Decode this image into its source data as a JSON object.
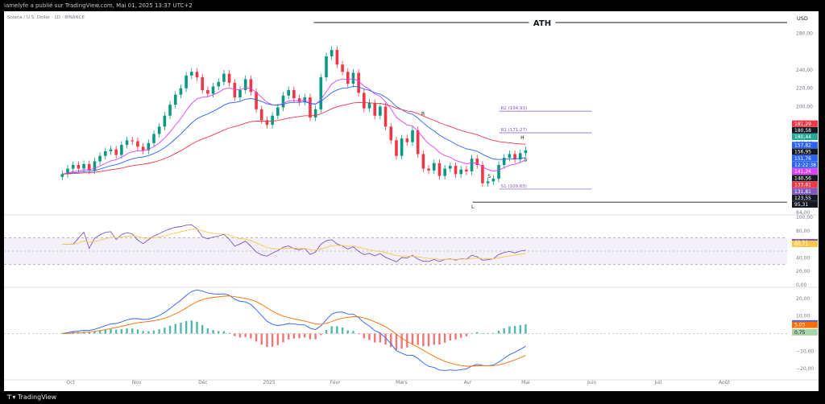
{
  "topbar": {
    "text": "iamelyfe a publié sur TradingView.com, Mai 01, 2025 13:37 UTC+2"
  },
  "brand": {
    "text": "TradingView"
  },
  "chart_data": {
    "type": "candlestick",
    "symbol": "Solana / U.S. Dollar · 1D · BINANCE",
    "currency": "USD",
    "price_axis": {
      "min": 84,
      "max": 292,
      "ticks": [
        "280,00",
        "240,00",
        "220,00",
        "200,00",
        "160,00",
        "120,00",
        "102,00",
        "84,00"
      ],
      "tick_values": [
        280,
        240,
        220,
        200,
        160,
        120,
        102,
        84
      ]
    },
    "x_labels": [
      "Oct",
      "Nov",
      "Déc",
      "2025",
      "Févr",
      "Mars",
      "Avr",
      "Mai",
      "Juin",
      "Juil",
      "Août"
    ],
    "x_positions": [
      0.125,
      1.125,
      2.125,
      3.125,
      4.125,
      5.125,
      6.125,
      7.0,
      8.0,
      9.0,
      10.0
    ],
    "time_range": [
      -0.88,
      10.95
    ],
    "current_index": 7.0,
    "closes": [
      126,
      132,
      136,
      132,
      137,
      130,
      140,
      146,
      151,
      153,
      147,
      158,
      163,
      162,
      156,
      152,
      160,
      170,
      178,
      190,
      202,
      213,
      220,
      234,
      238,
      232,
      218,
      214,
      222,
      227,
      236,
      226,
      210,
      218,
      230,
      216,
      197,
      185,
      180,
      190,
      199,
      212,
      218,
      209,
      205,
      210,
      188,
      197,
      232,
      255,
      262,
      246,
      238,
      225,
      237,
      215,
      198,
      204,
      190,
      200,
      178,
      163,
      146,
      165,
      161,
      174,
      148,
      132,
      130,
      138,
      124,
      132,
      135,
      126,
      131,
      129,
      143,
      136,
      116,
      118,
      121,
      136,
      144,
      148,
      142,
      149,
      152
    ],
    "levels": [
      {
        "label": "R2 (194,93)",
        "value": 194.93
      },
      {
        "label": "R1 (171,27)",
        "value": 171.27
      },
      {
        "label": "S1 (109,63)",
        "value": 109.63
      }
    ],
    "annotations": {
      "ath": "ATH",
      "ath_value": 292,
      "low_label": "L",
      "low_value": 95.31,
      "h_label": "H",
      "s_label": "S",
      "r_label": "R"
    },
    "price_tags": [
      {
        "text": "181,29",
        "value": 181.29,
        "color": "#f23645"
      },
      {
        "text": "180,58",
        "value": 180.58,
        "color": "#131722"
      },
      {
        "text": "180,44",
        "value": 180.44,
        "color": "#22ab94"
      },
      {
        "text": "157,82",
        "value": 157.82,
        "color": "#2962ff"
      },
      {
        "text": "156,95",
        "value": 156.95,
        "color": "#131722"
      },
      {
        "text": "151,76",
        "value": 151.76,
        "color": "#2962ff"
      },
      {
        "text": "12:22:38",
        "value": 148.3,
        "color": "#2962ff"
      },
      {
        "text": "141,24",
        "value": 141.24,
        "color": "#e040fb"
      },
      {
        "text": "140,56",
        "value": 140.56,
        "color": "#131722"
      },
      {
        "text": "133,81",
        "value": 133.81,
        "color": "#f23645"
      },
      {
        "text": "131,81",
        "value": 131.81,
        "color": "#7e57c2"
      },
      {
        "text": "123,55",
        "value": 123.55,
        "color": "#131722"
      },
      {
        "text": "95,31",
        "value": 95.31,
        "color": "#131722"
      }
    ],
    "rsi": {
      "ticks": [
        "100,00",
        "80,00",
        "60,00",
        "40,00",
        "20,00",
        "0,00"
      ],
      "tick_values": [
        100,
        80,
        60,
        40,
        20,
        0
      ],
      "band": [
        30,
        70
      ],
      "tags": [
        {
          "text": "63,20",
          "value": 63.2,
          "color": "#7e57c2"
        },
        {
          "text": "60,71",
          "value": 60.71,
          "color": "#f7c948"
        }
      ]
    },
    "macd": {
      "ticks": [
        "20,00",
        "10,00",
        "0,00",
        "−10,00",
        "−20,00"
      ],
      "tick_values": [
        20,
        10,
        0,
        -10,
        -20
      ],
      "range": [
        -25,
        25
      ],
      "tags": [
        {
          "text": "5,79",
          "value": 5.79,
          "color": "#2962ff"
        },
        {
          "text": "5,03",
          "value": 5.03,
          "color": "#ff6d00"
        },
        {
          "text": "0,75",
          "value": 0.75,
          "color": "#a5d6a7"
        }
      ]
    }
  }
}
